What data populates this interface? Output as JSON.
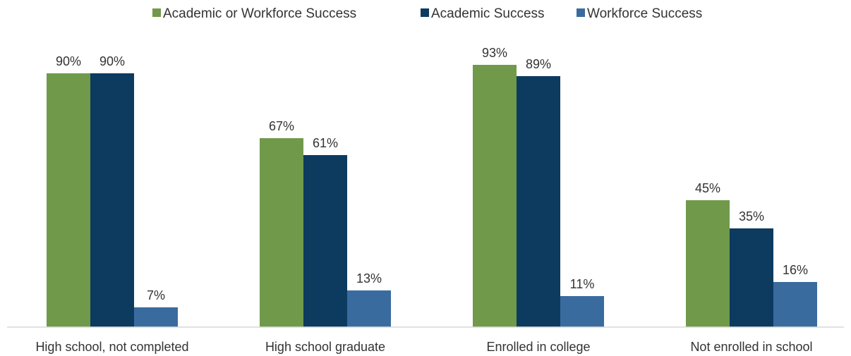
{
  "chart_data": {
    "type": "bar",
    "categories": [
      "High school, not completed",
      "High school graduate",
      "Enrolled in college",
      "Not enrolled in school"
    ],
    "series": [
      {
        "name": "Academic or Workforce Success",
        "color": "#70994a",
        "values": [
          90,
          67,
          93,
          45
        ],
        "labels": [
          "90%",
          "67%",
          "93%",
          "45%"
        ]
      },
      {
        "name": "Academic Success",
        "color": "#0d3a5f",
        "values": [
          90,
          61,
          89,
          35
        ],
        "labels": [
          "90%",
          "61%",
          "89%",
          "35%"
        ]
      },
      {
        "name": "Workforce Success",
        "color": "#3a6b9f",
        "values": [
          7,
          13,
          11,
          16
        ],
        "labels": [
          "7%",
          "13%",
          "11%",
          "16%"
        ]
      }
    ],
    "ylim": [
      0,
      100
    ],
    "grid": false,
    "legend_position": "top-center"
  }
}
